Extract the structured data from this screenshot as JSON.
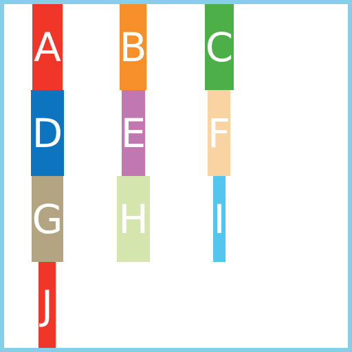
{
  "frame": {
    "border_color": "#87ceeb"
  },
  "tiles": [
    {
      "label": "A",
      "color": "#f03529"
    },
    {
      "label": "B",
      "color": "#f7902a"
    },
    {
      "label": "C",
      "color": "#4caf48"
    },
    {
      "label": "D",
      "color": "#0d75bf"
    },
    {
      "label": "E",
      "color": "#c178b1"
    },
    {
      "label": "F",
      "color": "#f9d3a1"
    },
    {
      "label": "G",
      "color": "#b3a581"
    },
    {
      "label": "H",
      "color": "#d4e6ae"
    },
    {
      "label": "I",
      "color": "#54c5ec"
    },
    {
      "label": "J",
      "color": "#f03529"
    }
  ]
}
